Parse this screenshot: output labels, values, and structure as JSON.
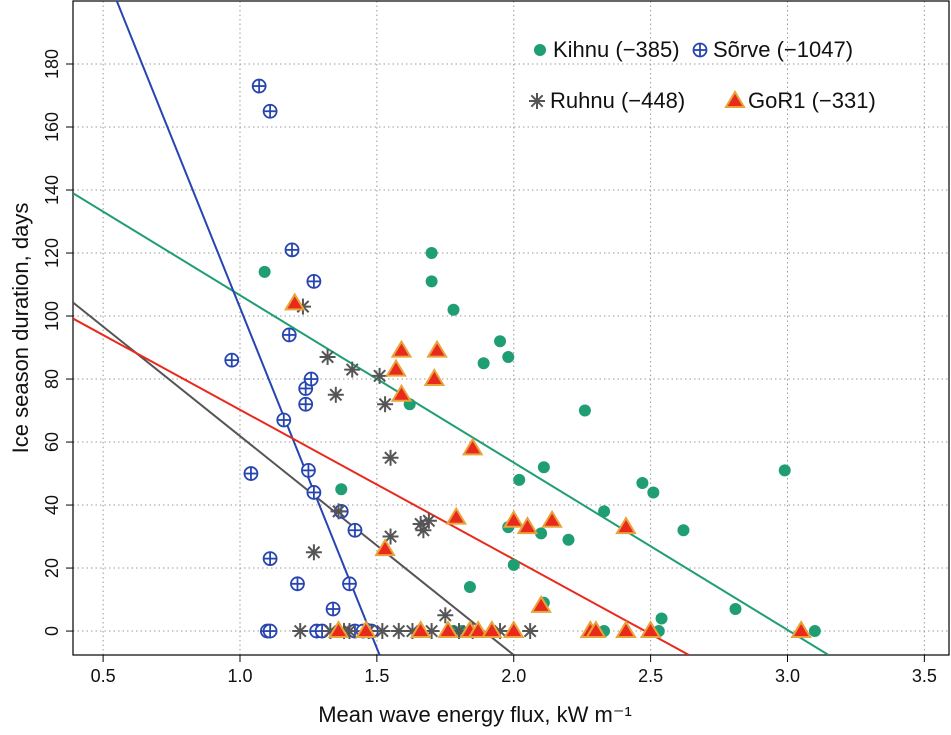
{
  "chart_data": {
    "type": "scatter",
    "x_label": "Mean wave energy flux, kW m⁻¹",
    "y_label": "Ice season duration, days",
    "xlim": [
      0.39,
      3.59
    ],
    "ylim": [
      -7.6,
      200
    ],
    "xticks": [
      0.5,
      {
        "value": 1,
        "label": "1.0"
      },
      1.5,
      {
        "value": 2,
        "label": "2.0"
      },
      2.5,
      {
        "value": 3,
        "label": "3.0"
      },
      3.5
    ],
    "yticks": [
      0,
      20,
      40,
      60,
      80,
      100,
      120,
      140,
      160,
      180
    ],
    "grid": true,
    "legend": "upper right",
    "series": [
      {
        "name": "Kihnu (−385)",
        "color": "#1f9e74",
        "marker": "circle",
        "x": [
          1.09,
          1.37,
          1.7,
          1.7,
          1.78,
          1.89,
          1.95,
          1.98,
          1.62,
          1.98,
          2.0,
          2.02,
          2.11,
          2.1,
          2.11,
          2.2,
          2.26,
          2.33,
          2.33,
          2.47,
          2.51,
          2.53,
          2.54,
          2.62,
          2.81,
          2.99,
          3.1,
          1.84,
          1.78,
          1.81
        ],
        "values": [
          114,
          45,
          120,
          111,
          102,
          85,
          92,
          87,
          72,
          33,
          21,
          48,
          52,
          31,
          9,
          29,
          70,
          38,
          0,
          47,
          44,
          0,
          4,
          32,
          7,
          51,
          0,
          14,
          0,
          0
        ],
        "fit": {
          "x": [
            0.39,
            3.15
          ],
          "y": [
            139,
            -7.6
          ]
        }
      },
      {
        "name": "Sõrve (−1047)",
        "color": "#2745b0",
        "marker": "circle-plus",
        "x": [
          0.97,
          1.04,
          1.07,
          1.11,
          1.1,
          1.11,
          1.11,
          1.16,
          1.18,
          1.19,
          1.21,
          1.24,
          1.24,
          1.25,
          1.26,
          1.27,
          1.27,
          1.28,
          1.3,
          1.34,
          1.37,
          1.4,
          1.42,
          1.42,
          1.45,
          1.48
        ],
        "values": [
          86,
          50,
          173,
          165,
          0,
          23,
          0,
          67,
          94,
          121,
          15,
          77,
          72,
          51,
          80,
          111,
          44,
          0,
          0,
          7,
          38,
          15,
          32,
          0,
          0,
          0
        ],
        "fit": {
          "x": [
            0.55,
            1.51
          ],
          "y": [
            200,
            -7.6
          ]
        }
      },
      {
        "name": "Ruhnu (−448)",
        "color": "#555555",
        "marker": "asterisk",
        "x": [
          1.23,
          1.32,
          1.35,
          1.41,
          1.51,
          1.53,
          1.55,
          1.36,
          1.27,
          1.55,
          1.66,
          1.69,
          1.75,
          1.22,
          1.33,
          1.4,
          1.47,
          1.52,
          1.58,
          1.63,
          1.7,
          1.8,
          1.85,
          1.95,
          2.06,
          1.38,
          1.67
        ],
        "values": [
          103,
          87,
          75,
          83,
          81,
          72,
          55,
          38,
          25,
          30,
          34,
          35,
          5,
          0,
          0,
          0,
          0,
          0,
          0,
          0,
          0,
          0,
          0,
          0,
          0,
          0,
          32
        ],
        "fit": {
          "x": [
            0.39,
            2.0
          ],
          "y": [
            104.3,
            -7.6
          ]
        }
      },
      {
        "name": "GoR1 (−331)",
        "color": "#e8291c",
        "edgecolor": "#e8a33a",
        "marker": "triangle",
        "x": [
          1.2,
          1.59,
          1.57,
          1.59,
          1.72,
          1.71,
          1.85,
          1.53,
          1.79,
          2.0,
          2.05,
          2.14,
          2.1,
          2.41,
          1.36,
          1.46,
          1.66,
          1.76,
          1.84,
          1.87,
          1.92,
          2.0,
          2.28,
          2.3,
          2.41,
          2.5,
          3.05
        ],
        "values": [
          104,
          89,
          83,
          75,
          89,
          80,
          58,
          26,
          36,
          35,
          33,
          35,
          8,
          33,
          0,
          0,
          0,
          0,
          0,
          0,
          0,
          0,
          0,
          0,
          0,
          0,
          0
        ],
        "fit": {
          "x": [
            0.39,
            2.64
          ],
          "y": [
            99.2,
            -7.6
          ]
        }
      }
    ]
  }
}
